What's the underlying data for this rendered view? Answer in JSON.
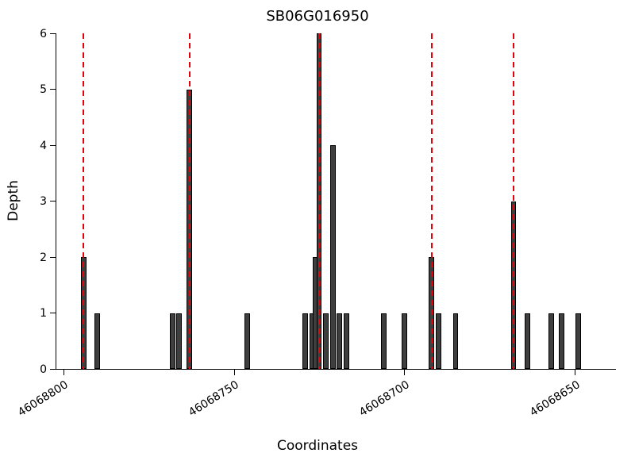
{
  "chart_data": {
    "type": "bar",
    "title": "SB06G016950",
    "xlabel": "Coordinates",
    "ylabel": "Depth",
    "x_axis_reversed": true,
    "xlim": [
      46068802,
      46068638
    ],
    "ylim": [
      0,
      6
    ],
    "yticks": [
      0,
      1,
      2,
      3,
      4,
      5,
      6
    ],
    "xticks": [
      46068800,
      46068750,
      46068700,
      46068650
    ],
    "bar_width_units": 1.6,
    "bar_color": "#3f3f3f",
    "bar_edge_color": "#000000",
    "red_line_color": "#e8000b",
    "grid": false,
    "legend": false,
    "bars": [
      {
        "x": 46068794,
        "depth": 2
      },
      {
        "x": 46068790,
        "depth": 1
      },
      {
        "x": 46068768,
        "depth": 1
      },
      {
        "x": 46068766,
        "depth": 1
      },
      {
        "x": 46068763,
        "depth": 5
      },
      {
        "x": 46068746,
        "depth": 1
      },
      {
        "x": 46068729,
        "depth": 1
      },
      {
        "x": 46068727,
        "depth": 1
      },
      {
        "x": 46068726,
        "depth": 2
      },
      {
        "x": 46068725,
        "depth": 6
      },
      {
        "x": 46068723,
        "depth": 1
      },
      {
        "x": 46068721,
        "depth": 4
      },
      {
        "x": 46068719,
        "depth": 1
      },
      {
        "x": 46068717,
        "depth": 1
      },
      {
        "x": 46068706,
        "depth": 1
      },
      {
        "x": 46068700,
        "depth": 1
      },
      {
        "x": 46068692,
        "depth": 2
      },
      {
        "x": 46068690,
        "depth": 1
      },
      {
        "x": 46068685,
        "depth": 1
      },
      {
        "x": 46068668,
        "depth": 3
      },
      {
        "x": 46068664,
        "depth": 1
      },
      {
        "x": 46068657,
        "depth": 1
      },
      {
        "x": 46068654,
        "depth": 1
      },
      {
        "x": 46068649,
        "depth": 1
      }
    ],
    "red_lines": [
      46068794,
      46068763,
      46068725,
      46068692,
      46068668
    ]
  }
}
